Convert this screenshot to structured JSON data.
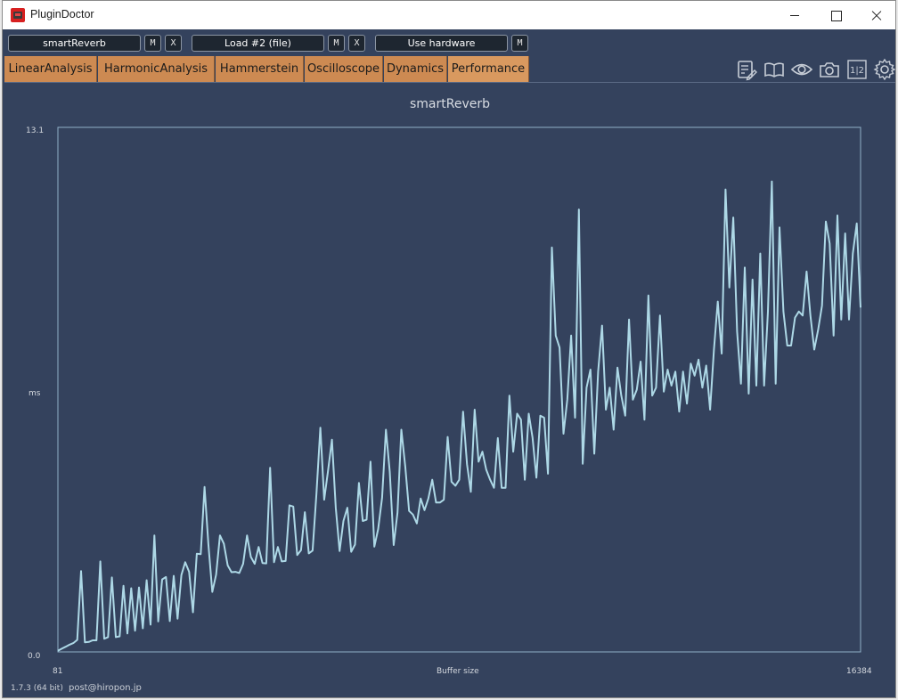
{
  "window": {
    "title": "PluginDoctor"
  },
  "toolbar": {
    "slot1": {
      "label": "smartReverb",
      "m": "M",
      "x": "X"
    },
    "slot2": {
      "label": "Load #2 (file)",
      "m": "M",
      "x": "X"
    },
    "slot3": {
      "label": "Use hardware",
      "m": "M"
    }
  },
  "tabs": [
    {
      "label": "LinearAnalysis",
      "active": false
    },
    {
      "label": "HarmonicAnalysis",
      "active": false
    },
    {
      "label": "Hammerstein",
      "active": false
    },
    {
      "label": "Oscilloscope",
      "active": false
    },
    {
      "label": "Dynamics",
      "active": false
    },
    {
      "label": "Performance",
      "active": true
    }
  ],
  "toolbar_icons": [
    "edit-notes-icon",
    "book-icon",
    "eye-icon",
    "camera-icon",
    "compare-1-2-icon",
    "settings-icon"
  ],
  "toolbar_icon_text": {
    "compare": "1|2"
  },
  "colors": {
    "background": "#34425d",
    "tab": "#cd8a52",
    "line": "#add8e6",
    "frame": "#8fb0c8"
  },
  "footer": {
    "version": "1.7.3 (64 bit)",
    "email": "post@hiropon.jp"
  },
  "chart_data": {
    "type": "line",
    "title": "smartReverb",
    "xlabel": "Buffer size",
    "ylabel": "ms",
    "x_tick_labels": {
      "min": "81",
      "max": "16384"
    },
    "y_tick_labels": {
      "min": "0.0",
      "max": "13.1"
    },
    "ylim": [
      0.0,
      13.1
    ],
    "grid": false,
    "series": [
      {
        "values": [
          0.03,
          0.08,
          0.13,
          0.18,
          0.22,
          0.3,
          2.02,
          0.24,
          0.25,
          0.29,
          0.29,
          2.26,
          0.33,
          0.37,
          1.86,
          0.37,
          0.39,
          1.65,
          0.46,
          1.59,
          0.53,
          1.61,
          0.59,
          1.79,
          0.68,
          2.91,
          0.76,
          1.81,
          1.87,
          0.77,
          1.9,
          0.83,
          1.92,
          2.24,
          2.0,
          0.99,
          2.45,
          2.44,
          4.12,
          2.69,
          1.5,
          1.93,
          2.91,
          2.7,
          2.16,
          1.99,
          2.0,
          1.97,
          2.2,
          2.91,
          2.37,
          2.2,
          2.62,
          2.22,
          2.21,
          4.6,
          2.24,
          2.62,
          2.26,
          2.27,
          3.66,
          3.63,
          2.42,
          2.54,
          3.49,
          2.46,
          2.53,
          3.95,
          5.6,
          3.8,
          4.52,
          5.3,
          3.6,
          2.52,
          3.27,
          3.6,
          2.5,
          2.68,
          4.22,
          3.27,
          3.3,
          4.75,
          2.63,
          3.07,
          3.85,
          5.55,
          4.5,
          2.67,
          3.48,
          5.55,
          4.63,
          3.52,
          3.43,
          3.21,
          3.83,
          3.54,
          3.83,
          4.3,
          3.73,
          3.73,
          3.8,
          5.37,
          4.25,
          4.15,
          4.3,
          6.0,
          4.69,
          4.0,
          6.05,
          4.75,
          5.0,
          4.55,
          4.3,
          4.1,
          5.34,
          4.1,
          4.1,
          6.4,
          5.0,
          5.95,
          5.8,
          4.3,
          5.95,
          5.35,
          4.35,
          5.9,
          5.85,
          4.45,
          10.1,
          7.9,
          7.6,
          5.45,
          6.3,
          7.9,
          5.85,
          11.05,
          4.7,
          6.6,
          7.05,
          4.95,
          7.0,
          8.15,
          6.05,
          6.6,
          5.55,
          7.1,
          6.4,
          5.9,
          8.3,
          6.3,
          6.55,
          7.25,
          5.8,
          8.9,
          6.4,
          6.6,
          8.4,
          6.5,
          7.05,
          6.65,
          7.0,
          6.0,
          7.0,
          6.2,
          7.2,
          6.9,
          7.3,
          6.6,
          7.15,
          6.05,
          7.55,
          8.75,
          7.45,
          11.55,
          9.1,
          10.85,
          8.0,
          6.7,
          9.6,
          6.45,
          9.3,
          6.65,
          9.95,
          6.65,
          8.5,
          11.75,
          6.7,
          10.6,
          8.5,
          7.65,
          7.65,
          8.35,
          8.5,
          8.4,
          9.5,
          8.4,
          7.55,
          8.05,
          8.65,
          10.75,
          10.2,
          7.9,
          10.9,
          8.3,
          10.45,
          8.3,
          9.95,
          10.7,
          8.6
        ],
        "color": "#add8e6"
      }
    ]
  }
}
